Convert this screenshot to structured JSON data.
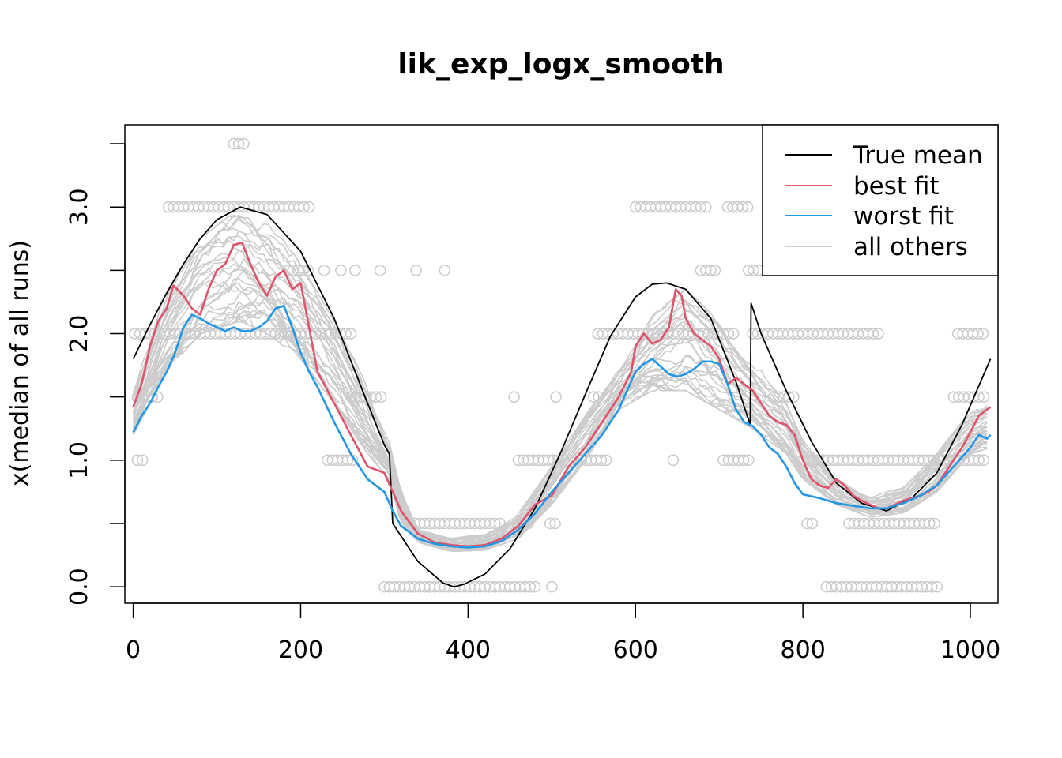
{
  "chart_data": {
    "type": "line",
    "title": "lik_exp_logx_smooth",
    "xlabel": "",
    "ylabel": "x(median of all runs)",
    "xlim": [
      -10,
      1033
    ],
    "ylim": [
      -0.13,
      3.65
    ],
    "xticks": [
      0,
      200,
      400,
      600,
      800,
      1000
    ],
    "xtick_labels": [
      "0",
      "200",
      "400",
      "600",
      "800",
      "1000"
    ],
    "yticks": [
      0.0,
      0.5,
      1.0,
      1.5,
      2.0,
      2.5,
      3.0,
      3.5
    ],
    "ytick_labels": [
      "0.0",
      "",
      "1.0",
      "",
      "2.0",
      "",
      "3.0",
      ""
    ],
    "legend": {
      "position": "top-right",
      "entries": [
        {
          "label": "True mean",
          "color": "#000000"
        },
        {
          "label": "best fit",
          "color": "#DF536B"
        },
        {
          "label": "worst fit",
          "color": "#2297E6"
        },
        {
          "label": "all others",
          "color": "#CCCCCC"
        }
      ]
    },
    "series": [
      {
        "name": "True mean",
        "color": "#000000",
        "x": [
          0,
          20,
          40,
          60,
          80,
          100,
          128,
          160,
          200,
          240,
          280,
          300,
          306,
          310,
          340,
          370,
          383,
          395,
          420,
          450,
          480,
          510,
          540,
          570,
          600,
          620,
          637,
          660,
          690,
          720,
          737,
          738,
          750,
          780,
          810,
          840,
          870,
          900,
          930,
          960,
          990,
          1024
        ],
        "values": [
          1.8,
          2.07,
          2.32,
          2.55,
          2.75,
          2.9,
          3.0,
          2.94,
          2.65,
          2.12,
          1.45,
          1.12,
          1.05,
          0.5,
          0.2,
          0.03,
          0.0,
          0.02,
          0.1,
          0.3,
          0.62,
          1.05,
          1.52,
          1.98,
          2.29,
          2.39,
          2.4,
          2.35,
          2.12,
          1.62,
          1.28,
          2.24,
          2.0,
          1.55,
          1.15,
          0.82,
          0.66,
          0.6,
          0.7,
          0.9,
          1.28,
          1.8
        ]
      },
      {
        "name": "best fit",
        "color": "#DF536B",
        "x": [
          0,
          10,
          20,
          30,
          40,
          48,
          60,
          70,
          80,
          90,
          100,
          110,
          120,
          130,
          140,
          150,
          160,
          170,
          180,
          190,
          200,
          210,
          220,
          240,
          260,
          280,
          300,
          310,
          320,
          340,
          360,
          380,
          400,
          420,
          440,
          460,
          480,
          500,
          520,
          540,
          560,
          580,
          595,
          600,
          610,
          620,
          630,
          640,
          648,
          655,
          660,
          670,
          680,
          690,
          700,
          710,
          720,
          730,
          740,
          750,
          760,
          770,
          780,
          790,
          800,
          810,
          820,
          830,
          840,
          850,
          860,
          870,
          880,
          890,
          900,
          910,
          920,
          930,
          940,
          950,
          960,
          970,
          980,
          990,
          1000,
          1010,
          1020,
          1024
        ],
        "values": [
          1.42,
          1.6,
          1.9,
          2.1,
          2.2,
          2.38,
          2.3,
          2.2,
          2.15,
          2.35,
          2.5,
          2.55,
          2.7,
          2.72,
          2.55,
          2.4,
          2.3,
          2.45,
          2.5,
          2.35,
          2.4,
          2.05,
          1.7,
          1.45,
          1.2,
          0.95,
          0.9,
          0.75,
          0.6,
          0.42,
          0.35,
          0.33,
          0.32,
          0.33,
          0.38,
          0.48,
          0.65,
          0.72,
          0.95,
          1.1,
          1.3,
          1.5,
          1.7,
          1.9,
          2.0,
          1.92,
          1.95,
          2.05,
          2.35,
          2.3,
          2.12,
          2.0,
          1.95,
          1.9,
          1.8,
          1.6,
          1.65,
          1.6,
          1.55,
          1.45,
          1.35,
          1.3,
          1.28,
          1.2,
          1.0,
          0.85,
          0.8,
          0.78,
          0.85,
          0.8,
          0.72,
          0.68,
          0.65,
          0.62,
          0.62,
          0.65,
          0.68,
          0.7,
          0.72,
          0.75,
          0.8,
          0.9,
          1.0,
          1.1,
          1.22,
          1.35,
          1.4,
          1.42
        ]
      },
      {
        "name": "worst fit",
        "color": "#2297E6",
        "x": [
          0,
          10,
          20,
          30,
          40,
          50,
          60,
          70,
          80,
          90,
          100,
          110,
          120,
          130,
          140,
          150,
          160,
          170,
          180,
          190,
          200,
          210,
          220,
          240,
          260,
          280,
          300,
          310,
          320,
          340,
          360,
          380,
          400,
          420,
          440,
          460,
          480,
          500,
          520,
          540,
          560,
          580,
          600,
          610,
          620,
          630,
          640,
          650,
          660,
          670,
          680,
          690,
          700,
          710,
          720,
          730,
          740,
          750,
          760,
          770,
          780,
          790,
          800,
          820,
          840,
          860,
          880,
          900,
          920,
          940,
          960,
          980,
          1000,
          1010,
          1020,
          1024
        ],
        "values": [
          1.22,
          1.35,
          1.45,
          1.58,
          1.7,
          1.85,
          2.05,
          2.15,
          2.12,
          2.08,
          2.05,
          2.02,
          2.05,
          2.02,
          2.02,
          2.05,
          2.1,
          2.2,
          2.22,
          2.05,
          1.85,
          1.7,
          1.58,
          1.3,
          1.05,
          0.85,
          0.75,
          0.6,
          0.48,
          0.38,
          0.34,
          0.32,
          0.31,
          0.32,
          0.36,
          0.45,
          0.58,
          0.75,
          0.9,
          1.05,
          1.2,
          1.4,
          1.7,
          1.76,
          1.8,
          1.74,
          1.68,
          1.66,
          1.68,
          1.72,
          1.78,
          1.78,
          1.76,
          1.6,
          1.4,
          1.3,
          1.27,
          1.2,
          1.1,
          1.05,
          0.95,
          0.82,
          0.73,
          0.7,
          0.66,
          0.64,
          0.62,
          0.62,
          0.66,
          0.72,
          0.8,
          0.95,
          1.1,
          1.2,
          1.17,
          1.2
        ]
      }
    ],
    "others_envelope": {
      "name": "all others",
      "color": "#CCCCCC",
      "x": [
        0,
        40,
        80,
        128,
        160,
        200,
        240,
        280,
        306,
        320,
        340,
        380,
        420,
        460,
        500,
        540,
        580,
        620,
        660,
        700,
        740,
        780,
        800,
        840,
        880,
        920,
        960,
        1000,
        1024
      ],
      "low": [
        1.2,
        1.7,
        2.0,
        2.1,
        2.0,
        1.8,
        1.45,
        1.05,
        0.85,
        0.5,
        0.35,
        0.28,
        0.29,
        0.38,
        0.65,
        1.0,
        1.4,
        1.55,
        1.55,
        1.4,
        1.25,
        1.05,
        0.85,
        0.65,
        0.55,
        0.58,
        0.75,
        1.05,
        1.1
      ],
      "high": [
        1.6,
        2.35,
        2.75,
        3.0,
        2.95,
        2.55,
        2.1,
        1.6,
        1.15,
        0.75,
        0.45,
        0.38,
        0.42,
        0.58,
        0.95,
        1.35,
        1.75,
        2.15,
        2.35,
        2.1,
        1.8,
        1.45,
        1.15,
        0.85,
        0.72,
        0.78,
        1.05,
        1.4,
        1.5
      ]
    },
    "observations": {
      "color": "#CCCCCC",
      "marker": "open-circle",
      "levels": [
        0.0,
        0.5,
        1.0,
        1.5,
        2.0,
        2.5,
        3.0,
        3.5
      ],
      "ranges": [
        {
          "y": 3.5,
          "x": [
            [
              120,
              132
            ]
          ]
        },
        {
          "y": 3.0,
          "x": [
            [
              42,
              212
            ],
            [
              600,
              685
            ],
            [
              710,
              735
            ]
          ]
        },
        {
          "y": 2.5,
          "x": [
            [
              185,
              212
            ],
            [
              228,
              228
            ],
            [
              248,
              248
            ],
            [
              265,
              265
            ],
            [
              295,
              297
            ],
            [
              338,
              340
            ],
            [
              372,
              372
            ],
            [
              678,
              690
            ],
            [
              695,
              698
            ],
            [
              735,
              750
            ]
          ]
        },
        {
          "y": 2.0,
          "x": [
            [
              2,
              265
            ],
            [
              555,
              720
            ],
            [
              740,
              895
            ],
            [
              985,
              1020
            ]
          ]
        },
        {
          "y": 1.5,
          "x": [
            [
              5,
              30
            ],
            [
              260,
              300
            ],
            [
              455,
              455
            ],
            [
              505,
              505
            ],
            [
              550,
              560
            ],
            [
              765,
              790
            ],
            [
              980,
              1020
            ]
          ]
        },
        {
          "y": 1.0,
          "x": [
            [
              5,
              12
            ],
            [
              232,
              265
            ],
            [
              460,
              515
            ],
            [
              535,
              565
            ],
            [
              645,
              650
            ],
            [
              705,
              740
            ],
            [
              800,
              1020
            ]
          ]
        },
        {
          "y": 0.5,
          "x": [
            [
              330,
              440
            ],
            [
              460,
              475
            ],
            [
              498,
              505
            ],
            [
              805,
              815
            ],
            [
              855,
              960
            ]
          ]
        },
        {
          "y": 0.0,
          "x": [
            [
              300,
              480
            ],
            [
              500,
              505
            ],
            [
              828,
              960
            ]
          ]
        }
      ]
    }
  }
}
